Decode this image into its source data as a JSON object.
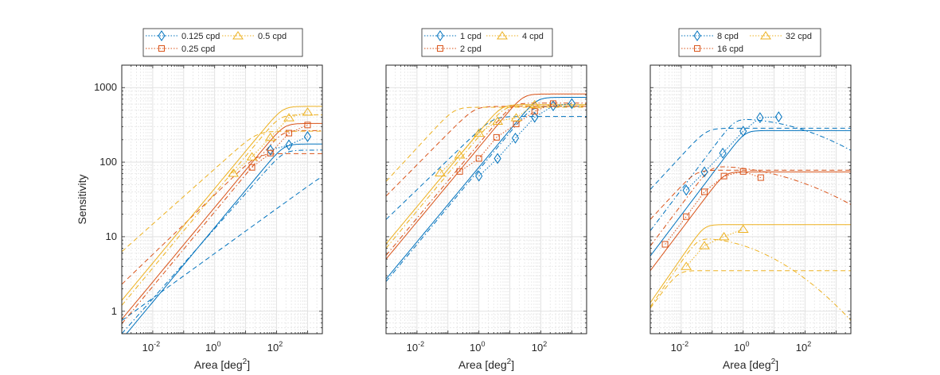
{
  "chart_data": [
    {
      "type": "line",
      "title": "",
      "xlabel": "Area [deg²]",
      "ylabel": "Sensitivity",
      "xscale": "log",
      "yscale": "log",
      "xlim": [
        0.001,
        3000
      ],
      "ylim": [
        0.5,
        2000
      ],
      "xticks": [
        {
          "v": 0.01,
          "base": "10",
          "exp": "-2"
        },
        {
          "v": 1,
          "base": "10",
          "exp": "0"
        },
        {
          "v": 100,
          "base": "10",
          "exp": "2"
        }
      ],
      "yticks": [
        {
          "v": 1,
          "label": "1"
        },
        {
          "v": 10,
          "label": "10"
        },
        {
          "v": 100,
          "label": "100"
        },
        {
          "v": 1000,
          "label": "1000"
        }
      ],
      "grid": true,
      "legend_placement": "top",
      "legend": [
        {
          "name": "0.125 cpd",
          "color": "#0072BD",
          "marker": "diamond"
        },
        {
          "name": "0.5 cpd",
          "color": "#EDB120",
          "marker": "triangle"
        },
        {
          "name": "0.25 cpd",
          "color": "#D95319",
          "marker": "square"
        }
      ],
      "series": [
        {
          "name": "0.125 cpd",
          "color": "#0072BD",
          "marker": "diamond",
          "x": [
            63,
            250,
            1000
          ],
          "y": [
            145,
            170,
            220
          ]
        },
        {
          "name": "0.25 cpd",
          "color": "#D95319",
          "marker": "square",
          "x": [
            16,
            63,
            250,
            1000
          ],
          "y": [
            85,
            132,
            245,
            315
          ]
        },
        {
          "name": "0.5 cpd",
          "color": "#EDB120",
          "marker": "triangle",
          "x": [
            4,
            16,
            63,
            250,
            1000
          ],
          "y": [
            71,
            118,
            215,
            395,
            470
          ]
        }
      ],
      "model_curves": [
        {
          "color": "#0072BD",
          "style": "solid",
          "s_at_xmin": 0.42,
          "slope": 0.5,
          "smax": 175,
          "decline": 0
        },
        {
          "color": "#0072BD",
          "style": "dashdot",
          "s_at_xmin": 0.5,
          "slope": 0.47,
          "smax": 145,
          "decline": 0
        },
        {
          "color": "#0072BD",
          "style": "dashed",
          "s_at_xmin": 0.75,
          "slope": 0.3,
          "smax": 90,
          "decline": 0
        },
        {
          "color": "#D95319",
          "style": "solid",
          "s_at_xmin": 0.78,
          "slope": 0.5,
          "smax": 330,
          "decline": 0
        },
        {
          "color": "#D95319",
          "style": "dashdot",
          "s_at_xmin": 0.68,
          "slope": 0.5,
          "smax": 265,
          "decline": 0
        },
        {
          "color": "#D95319",
          "style": "dashed",
          "s_at_xmin": 2.3,
          "slope": 0.4,
          "smax": 130,
          "decline": 0
        },
        {
          "color": "#EDB120",
          "style": "solid",
          "s_at_xmin": 1.4,
          "slope": 0.5,
          "smax": 560,
          "decline": 0
        },
        {
          "color": "#EDB120",
          "style": "dashdot",
          "s_at_xmin": 1.2,
          "slope": 0.5,
          "smax": 430,
          "decline": 0
        },
        {
          "color": "#EDB120",
          "style": "dashed",
          "s_at_xmin": 6.3,
          "slope": 0.37,
          "smax": 260,
          "decline": 0
        }
      ]
    },
    {
      "type": "line",
      "title": "",
      "xlabel": "Area [deg²]",
      "ylabel": "",
      "xscale": "log",
      "yscale": "log",
      "xlim": [
        0.001,
        3000
      ],
      "ylim": [
        0.5,
        2000
      ],
      "xticks": [
        {
          "v": 0.01,
          "base": "10",
          "exp": "-2"
        },
        {
          "v": 1,
          "base": "10",
          "exp": "0"
        },
        {
          "v": 100,
          "base": "10",
          "exp": "2"
        }
      ],
      "yticks": [],
      "grid": true,
      "legend_placement": "top",
      "legend": [
        {
          "name": "1 cpd",
          "color": "#0072BD",
          "marker": "diamond"
        },
        {
          "name": "4 cpd",
          "color": "#EDB120",
          "marker": "triangle"
        },
        {
          "name": "2 cpd",
          "color": "#D95319",
          "marker": "square"
        }
      ],
      "series": [
        {
          "name": "1 cpd",
          "color": "#0072BD",
          "marker": "diamond",
          "x": [
            1,
            4,
            15,
            63,
            250,
            1000
          ],
          "y": [
            65,
            112,
            210,
            400,
            570,
            610
          ]
        },
        {
          "name": "2 cpd",
          "color": "#D95319",
          "marker": "square",
          "x": [
            0.24,
            1,
            3.7,
            16,
            63,
            250
          ],
          "y": [
            75,
            112,
            215,
            325,
            480,
            610
          ]
        },
        {
          "name": "4 cpd",
          "color": "#EDB120",
          "marker": "triangle",
          "x": [
            0.056,
            0.24,
            1,
            4,
            16,
            63
          ],
          "y": [
            72,
            125,
            245,
            355,
            395,
            590
          ]
        }
      ],
      "model_curves": [
        {
          "color": "#0072BD",
          "style": "solid",
          "s_at_xmin": 2.7,
          "slope": 0.5,
          "smax": 740,
          "decline": 0
        },
        {
          "color": "#0072BD",
          "style": "dashdot",
          "s_at_xmin": 2.5,
          "slope": 0.5,
          "smax": 560,
          "decline": 0
        },
        {
          "color": "#0072BD",
          "style": "dashed",
          "s_at_xmin": 17,
          "slope": 0.4,
          "smax": 410,
          "decline": 0
        },
        {
          "color": "#D95319",
          "style": "solid",
          "s_at_xmin": 5,
          "slope": 0.5,
          "smax": 820,
          "decline": 0
        },
        {
          "color": "#D95319",
          "style": "dashdot",
          "s_at_xmin": 5.6,
          "slope": 0.5,
          "smax": 620,
          "decline": 0
        },
        {
          "color": "#D95319",
          "style": "dashed",
          "s_at_xmin": 35,
          "slope": 0.42,
          "smax": 560,
          "decline": 0
        },
        {
          "color": "#EDB120",
          "style": "solid",
          "s_at_xmin": 8,
          "slope": 0.5,
          "smax": 590,
          "decline": 0
        },
        {
          "color": "#EDB120",
          "style": "dashdot",
          "s_at_xmin": 7,
          "slope": 0.5,
          "smax": 570,
          "decline": 0
        },
        {
          "color": "#EDB120",
          "style": "dashed",
          "s_at_xmin": 55,
          "slope": 0.45,
          "smax": 545,
          "decline": 0
        }
      ]
    },
    {
      "type": "line",
      "title": "",
      "xlabel": "Area [deg²]",
      "ylabel": "",
      "xscale": "log",
      "yscale": "log",
      "xlim": [
        0.001,
        3000
      ],
      "ylim": [
        0.5,
        2000
      ],
      "xticks": [
        {
          "v": 0.01,
          "base": "10",
          "exp": "-2"
        },
        {
          "v": 1,
          "base": "10",
          "exp": "0"
        },
        {
          "v": 100,
          "base": "10",
          "exp": "2"
        }
      ],
      "yticks": [],
      "grid": true,
      "legend_placement": "top",
      "legend": [
        {
          "name": "8 cpd",
          "color": "#0072BD",
          "marker": "diamond"
        },
        {
          "name": "32 cpd",
          "color": "#EDB120",
          "marker": "triangle"
        },
        {
          "name": "16 cpd",
          "color": "#D95319",
          "marker": "square"
        }
      ],
      "series": [
        {
          "name": "8 cpd",
          "color": "#0072BD",
          "marker": "diamond",
          "x": [
            0.0145,
            0.056,
            0.22,
            1,
            3.5,
            14
          ],
          "y": [
            42,
            74,
            132,
            260,
            395,
            405
          ]
        },
        {
          "name": "16 cpd",
          "color": "#D95319",
          "marker": "square",
          "x": [
            0.003,
            0.0145,
            0.056,
            0.24,
            1,
            3.7
          ],
          "y": [
            7.9,
            18.6,
            40,
            65,
            75,
            62
          ]
        },
        {
          "name": "32 cpd",
          "color": "#EDB120",
          "marker": "triangle",
          "x": [
            0.0145,
            0.056,
            0.24,
            1
          ],
          "y": [
            4.0,
            7.6,
            10,
            12.6
          ]
        }
      ],
      "model_curves": [
        {
          "color": "#0072BD",
          "style": "solid",
          "s_at_xmin": 5.5,
          "slope": 0.55,
          "smax": 265,
          "decline": 0
        },
        {
          "color": "#0072BD",
          "style": "dashdot",
          "s_at_xmin": 12,
          "slope": 0.55,
          "smax": 380,
          "decline": 0.06
        },
        {
          "color": "#0072BD",
          "style": "dashed",
          "s_at_xmin": 43,
          "slope": 0.45,
          "smax": 285,
          "decline": 0
        },
        {
          "color": "#D95319",
          "style": "solid",
          "s_at_xmin": 3.5,
          "slope": 0.55,
          "smax": 74,
          "decline": 0
        },
        {
          "color": "#D95319",
          "style": "dashdot",
          "s_at_xmin": 7.5,
          "slope": 0.55,
          "smax": 88,
          "decline": 0.05
        },
        {
          "color": "#D95319",
          "style": "dashed",
          "s_at_xmin": 17,
          "slope": 0.45,
          "smax": 78,
          "decline": 0
        },
        {
          "color": "#EDB120",
          "style": "solid",
          "s_at_xmin": 1.3,
          "slope": 0.6,
          "smax": 14.5,
          "decline": 0
        },
        {
          "color": "#EDB120",
          "style": "dashdot",
          "s_at_xmin": 1.15,
          "slope": 0.6,
          "smax": 9.5,
          "decline": 0.09
        },
        {
          "color": "#EDB120",
          "style": "dashed",
          "s_at_xmin": 1.1,
          "slope": 0.55,
          "smax": 3.5,
          "decline": 0
        }
      ]
    }
  ]
}
